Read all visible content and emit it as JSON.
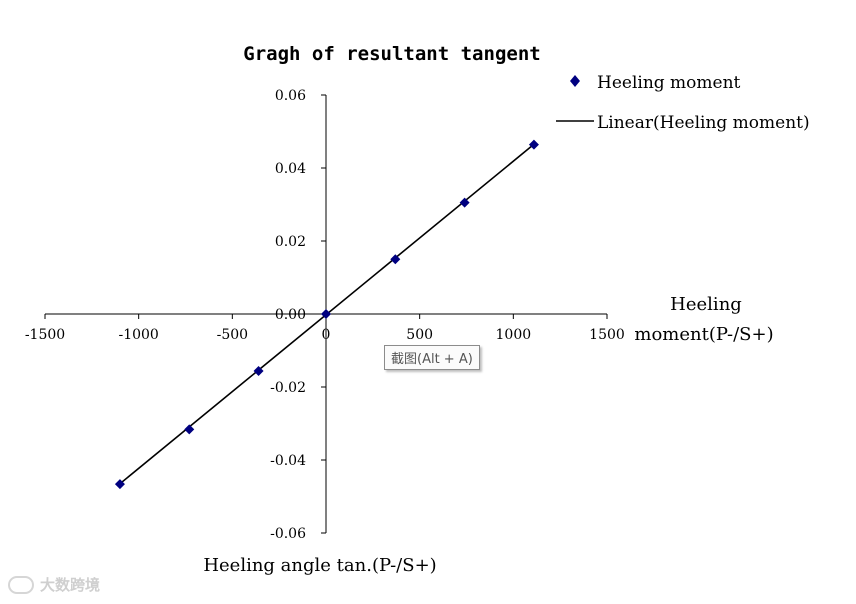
{
  "chart_data": {
    "type": "scatter",
    "title": "Gragh of resultant tangent",
    "xlabel": "Heeling moment(P-/S+)",
    "ylabel": "Heeling angle tan.(P-/S+)",
    "xlim": [
      -1500,
      1500
    ],
    "ylim": [
      -0.06,
      0.06
    ],
    "x_ticks": [
      "-1500",
      "-1000",
      "-500",
      "0",
      "500",
      "1000",
      "1500"
    ],
    "y_ticks": [
      "0.06",
      "0.04",
      "0.02",
      "0.00",
      "-0.02",
      "-0.04",
      "-0.06"
    ],
    "x_tick_values": [
      -1500,
      -1000,
      -500,
      0,
      500,
      1000,
      1500
    ],
    "y_tick_values": [
      0.06,
      0.04,
      0.02,
      0.0,
      -0.02,
      -0.04,
      -0.06
    ],
    "series": [
      {
        "name": "Heeling moment",
        "marker": "diamond",
        "color": "#000080",
        "points": [
          {
            "x": -1100,
            "y": -0.0466
          },
          {
            "x": -730,
            "y": -0.0316
          },
          {
            "x": -360,
            "y": -0.0156
          },
          {
            "x": 0,
            "y": 0.0
          },
          {
            "x": 370,
            "y": 0.015
          },
          {
            "x": 740,
            "y": 0.0305
          },
          {
            "x": 1110,
            "y": 0.0464
          }
        ]
      },
      {
        "name": "Linear(Heeling moment)",
        "style": "line",
        "color": "#000000",
        "line": [
          {
            "x": -1100,
            "y": -0.0465
          },
          {
            "x": 1110,
            "y": 0.0465
          }
        ]
      }
    ],
    "grid": false,
    "legend_position": "top-right"
  },
  "overlay": {
    "tooltip": "截图(Alt + A)",
    "watermark": "大数跨境"
  }
}
